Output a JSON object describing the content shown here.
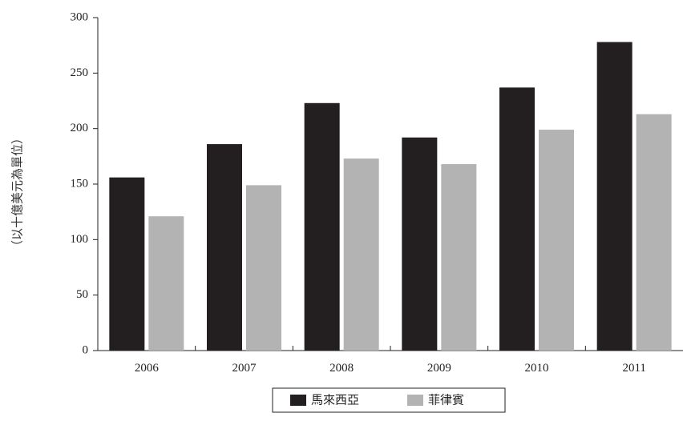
{
  "chart_data": {
    "type": "bar",
    "categories": [
      "2006",
      "2007",
      "2008",
      "2009",
      "2010",
      "2011"
    ],
    "series": [
      {
        "name": "馬來西亞",
        "values": [
          156,
          186,
          223,
          192,
          237,
          278
        ],
        "color": "#231f20"
      },
      {
        "name": "菲律賓",
        "values": [
          121,
          149,
          173,
          168,
          199,
          213
        ],
        "color": "#b3b3b3"
      }
    ],
    "title": "",
    "xlabel": "",
    "ylabel": "（以十億美元為單位）",
    "ylim": [
      0,
      300
    ],
    "yticks": [
      0,
      50,
      100,
      150,
      200,
      250,
      300
    ],
    "grid": false,
    "legend_position": "bottom-center"
  }
}
